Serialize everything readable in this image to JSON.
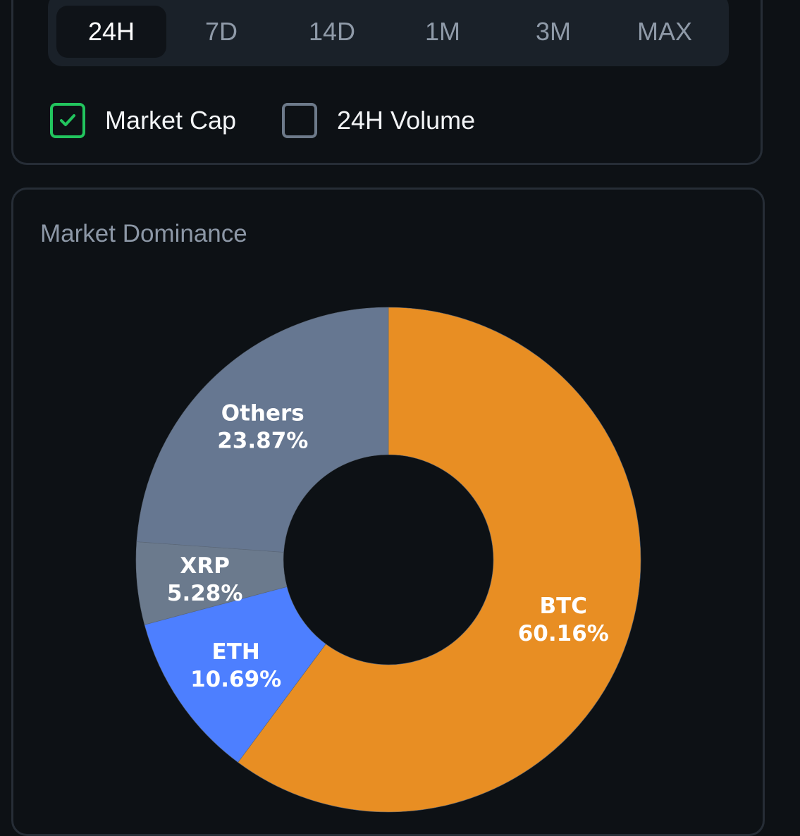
{
  "timeframes": {
    "options": [
      "24H",
      "7D",
      "14D",
      "1M",
      "3M",
      "MAX"
    ],
    "selected": "24H"
  },
  "metrics": {
    "market_cap": {
      "label": "Market Cap",
      "checked": true
    },
    "volume_24h": {
      "label": "24H Volume",
      "checked": false
    }
  },
  "colors": {
    "checked_border": "#22c55e",
    "btc": "#e88e23",
    "eth": "#4d7fff",
    "xrp": "#6b7a8d",
    "others": "#667791"
  },
  "chart_data": {
    "type": "pie",
    "title": "Market Dominance",
    "donut": true,
    "slices": [
      {
        "label": "BTC",
        "value": 60.16,
        "display": "60.16%",
        "color": "#e88e23"
      },
      {
        "label": "ETH",
        "value": 10.69,
        "display": "10.69%",
        "color": "#4d7fff"
      },
      {
        "label": "XRP",
        "value": 5.28,
        "display": "5.28%",
        "color": "#6b7a8d"
      },
      {
        "label": "Others",
        "value": 23.87,
        "display": "23.87%",
        "color": "#667791"
      }
    ]
  }
}
